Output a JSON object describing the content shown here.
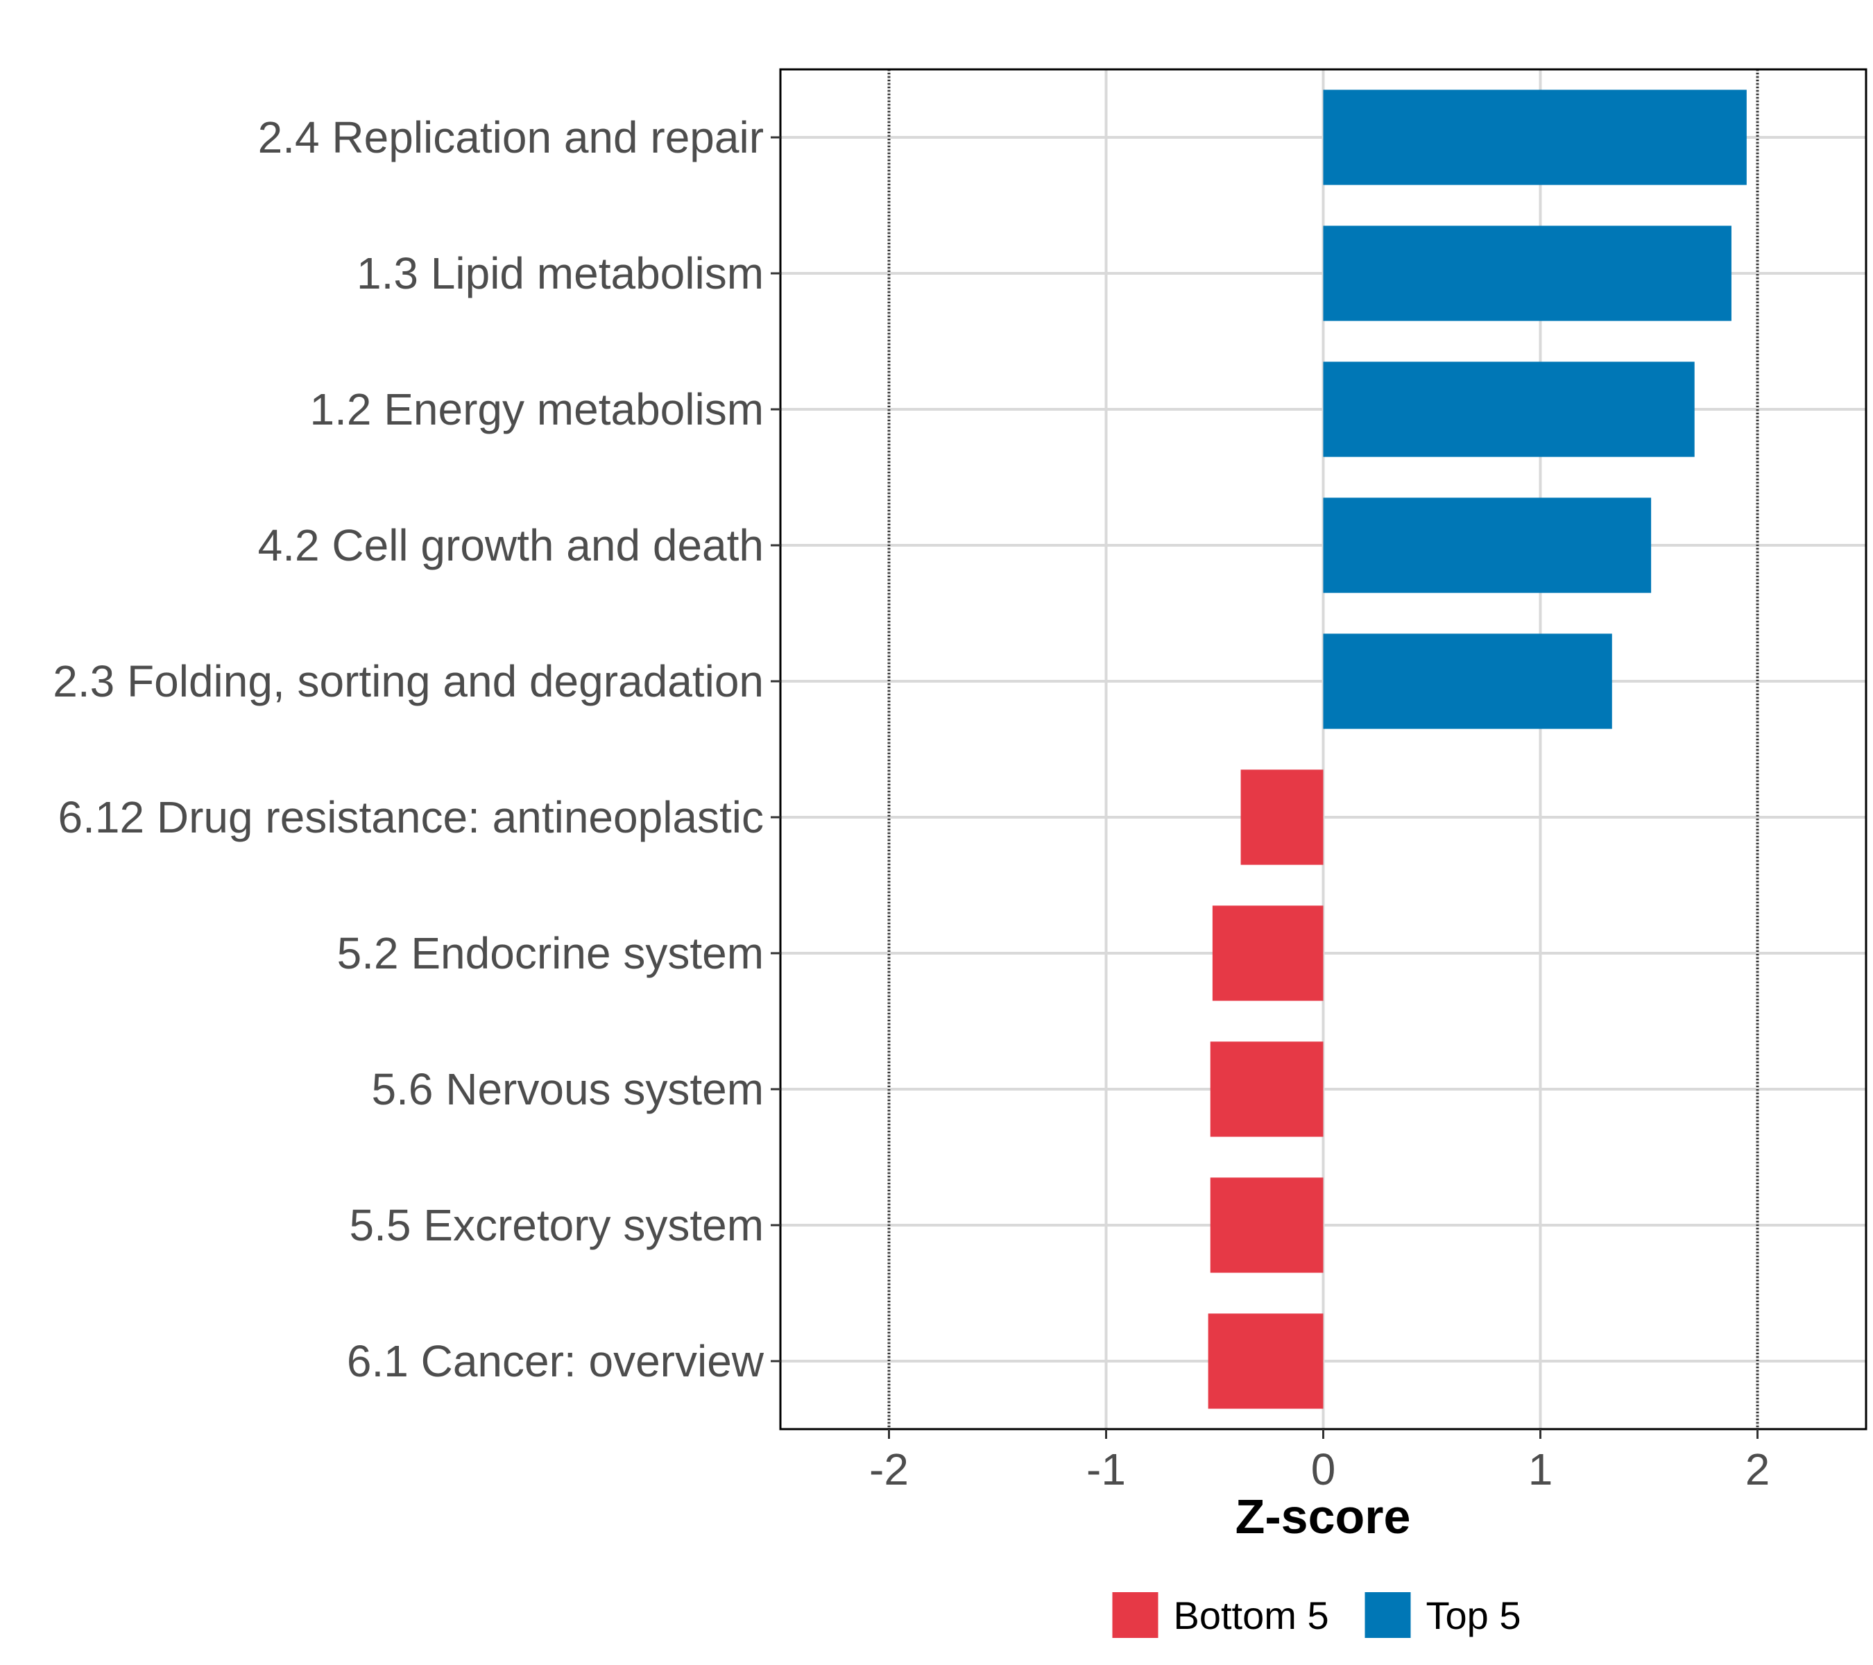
{
  "chart_data": {
    "type": "bar",
    "orientation": "horizontal",
    "xlabel": "Z-score",
    "xlim": [
      -2.5,
      2.5
    ],
    "xticks": [
      -2,
      -1,
      0,
      1,
      2
    ],
    "xtick_labels": [
      "-2",
      "-1",
      "0",
      "1",
      "2"
    ],
    "reference_lines": [
      -2,
      2
    ],
    "grid": true,
    "categories": [
      "2.4 Replication and repair",
      "1.3 Lipid metabolism",
      "1.2 Energy metabolism",
      "4.2 Cell growth and death",
      "2.3 Folding, sorting and degradation",
      "6.12 Drug resistance: antineoplastic",
      "5.2 Endocrine system",
      "5.6 Nervous system",
      "5.5 Excretory system",
      "6.1 Cancer: overview"
    ],
    "values": [
      1.95,
      1.88,
      1.71,
      1.51,
      1.33,
      -0.38,
      -0.51,
      -0.52,
      -0.52,
      -0.53
    ],
    "groups": [
      "Top 5",
      "Top 5",
      "Top 5",
      "Top 5",
      "Top 5",
      "Bottom 5",
      "Bottom 5",
      "Bottom 5",
      "Bottom 5",
      "Bottom 5"
    ],
    "legend": {
      "placement": "bottom",
      "entries": [
        {
          "name": "Bottom 5",
          "color": "#E63946"
        },
        {
          "name": "Top 5",
          "color": "#0077B6"
        }
      ]
    }
  }
}
